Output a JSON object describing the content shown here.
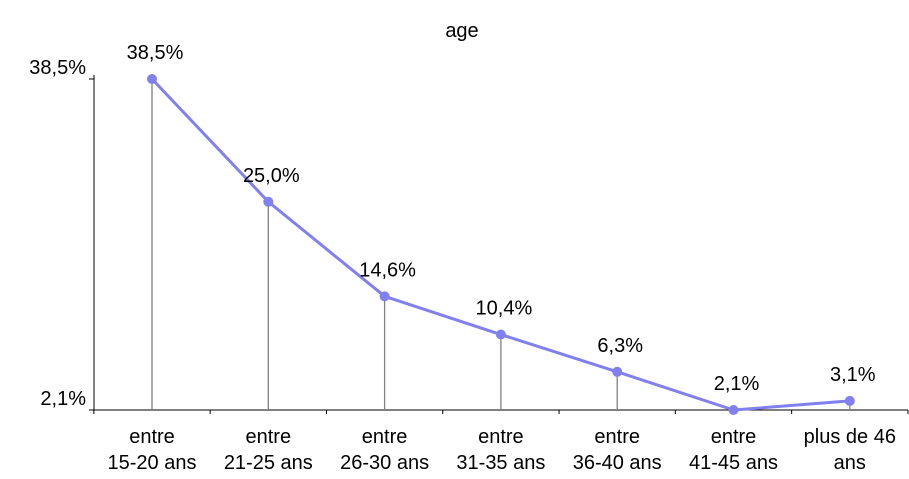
{
  "chart_data": {
    "type": "line",
    "title": "age",
    "xlabel": "",
    "ylabel": "",
    "categories": [
      [
        "entre",
        "15-20 ans"
      ],
      [
        "entre",
        "21-25 ans"
      ],
      [
        "entre",
        "26-30 ans"
      ],
      [
        "entre",
        "31-35 ans"
      ],
      [
        "entre",
        "36-40 ans"
      ],
      [
        "entre",
        "41-45 ans"
      ],
      [
        "plus de 46",
        "ans"
      ]
    ],
    "values": [
      38.5,
      25.0,
      14.6,
      10.4,
      6.3,
      2.1,
      3.1
    ],
    "value_labels": [
      "38,5%",
      "25,0%",
      "14,6%",
      "10,4%",
      "6,3%",
      "2,1%",
      "3,1%"
    ],
    "y_ticks": [
      {
        "value": 38.5,
        "label": "38,5%"
      },
      {
        "value": 2.1,
        "label": "2,1%"
      }
    ],
    "ylim": [
      2.1,
      38.5
    ],
    "grid": false,
    "drop_lines": true,
    "colors": {
      "line": "#8080ee",
      "marker": "#8080ee",
      "drop_line": "#808080",
      "axis": "#000000"
    }
  }
}
